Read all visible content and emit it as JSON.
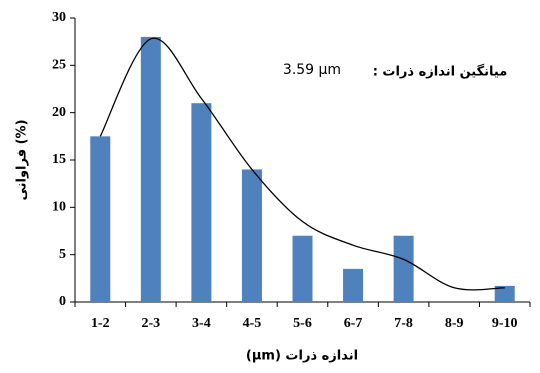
{
  "chart_data": {
    "type": "bar",
    "annotation_label": "میانگین اندازه ذرات :",
    "annotation_value": "3.59 µm",
    "x_label": "اندازه ذرات (µm)",
    "y_label": "(%) فراوانی",
    "categories": [
      "1-2",
      "2-3",
      "3-4",
      "4-5",
      "5-6",
      "6-7",
      "7-8",
      "8-9",
      "9-10"
    ],
    "series": [
      {
        "type": "bar",
        "color": "#4f81bd",
        "values": [
          17.5,
          28,
          21,
          14,
          7,
          3.5,
          7,
          0,
          1.7
        ]
      },
      {
        "type": "line",
        "color": "#000000",
        "smooth": true,
        "values": [
          17.5,
          27.8,
          21.5,
          14,
          8.5,
          6,
          4.5,
          1.5,
          1.5
        ]
      }
    ],
    "ylim": [
      0,
      30
    ],
    "yticks": [
      0,
      5,
      10,
      15,
      20,
      25,
      30
    ]
  }
}
